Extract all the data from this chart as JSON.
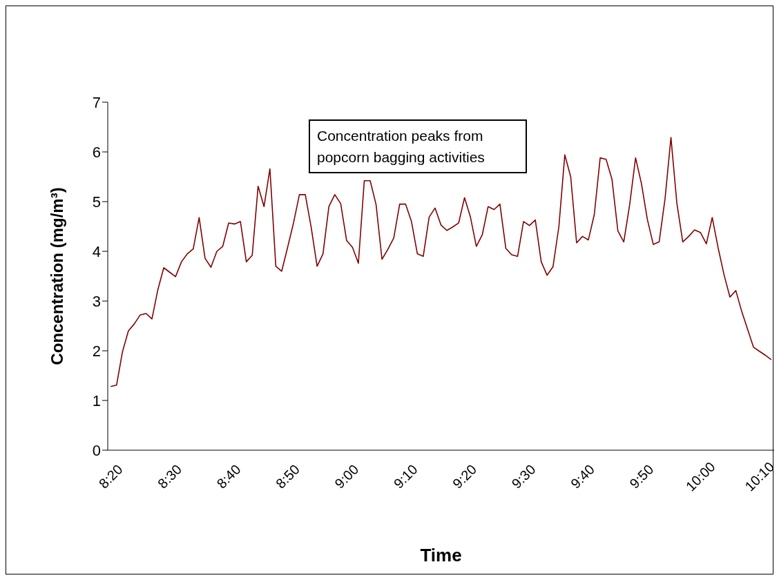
{
  "chart_data": {
    "type": "line",
    "xlabel": "Time",
    "ylabel": "Concentration (mg/m³)",
    "annotations": [
      "Concentration peaks from popcorn bagging activities"
    ],
    "categories": [
      "8:20",
      null,
      null,
      null,
      null,
      null,
      null,
      null,
      null,
      null,
      "8:30",
      null,
      null,
      null,
      null,
      null,
      null,
      null,
      null,
      null,
      "8:40",
      null,
      null,
      null,
      null,
      null,
      null,
      null,
      null,
      null,
      "8:50",
      null,
      null,
      null,
      null,
      null,
      null,
      null,
      null,
      null,
      "9:00",
      null,
      null,
      null,
      null,
      null,
      null,
      null,
      null,
      null,
      "9:10",
      null,
      null,
      null,
      null,
      null,
      null,
      null,
      null,
      null,
      "9:20",
      null,
      null,
      null,
      null,
      null,
      null,
      null,
      null,
      null,
      "9:30",
      null,
      null,
      null,
      null,
      null,
      null,
      null,
      null,
      null,
      "9:40",
      null,
      null,
      null,
      null,
      null,
      null,
      null,
      null,
      null,
      "9:50",
      null,
      null,
      null,
      null,
      null,
      null,
      null,
      null,
      null,
      "10:00",
      null,
      null,
      null,
      null,
      null,
      null,
      null,
      null,
      null,
      "10:10",
      null,
      null
    ],
    "series": [
      {
        "color": "#800000",
        "values": [
          1.28,
          1.31,
          1.98,
          2.4,
          2.54,
          2.72,
          2.75,
          2.64,
          3.23,
          3.67,
          3.58,
          3.49,
          3.79,
          3.95,
          4.05,
          4.68,
          3.86,
          3.68,
          4.0,
          4.1,
          4.57,
          4.55,
          4.6,
          3.79,
          3.92,
          5.31,
          4.9,
          5.66,
          3.7,
          3.6,
          4.08,
          4.57,
          5.14,
          5.14,
          4.48,
          3.7,
          3.95,
          4.9,
          5.14,
          4.96,
          4.22,
          4.08,
          3.76,
          5.42,
          5.42,
          4.94,
          3.84,
          4.04,
          4.27,
          4.95,
          4.95,
          4.6,
          3.95,
          3.9,
          4.69,
          4.87,
          4.53,
          4.42,
          4.49,
          4.57,
          5.08,
          4.69,
          4.1,
          4.33,
          4.9,
          4.84,
          4.95,
          4.06,
          3.93,
          3.9,
          4.6,
          4.52,
          4.63,
          3.79,
          3.52,
          3.69,
          4.5,
          5.94,
          5.5,
          4.17,
          4.3,
          4.23,
          4.74,
          5.88,
          5.85,
          5.45,
          4.41,
          4.19,
          4.94,
          5.88,
          5.36,
          4.64,
          4.14,
          4.19,
          5.06,
          6.29,
          4.97,
          4.19,
          4.3,
          4.43,
          4.38,
          4.15,
          4.68,
          4.07,
          3.53,
          3.08,
          3.21,
          2.79,
          2.43,
          2.07,
          1.99,
          1.91,
          1.82
        ]
      }
    ],
    "ylim": [
      0,
      7
    ],
    "yticks": [
      0,
      1,
      2,
      3,
      4,
      5,
      6,
      7
    ],
    "marker": "none",
    "line_style": "solid"
  }
}
